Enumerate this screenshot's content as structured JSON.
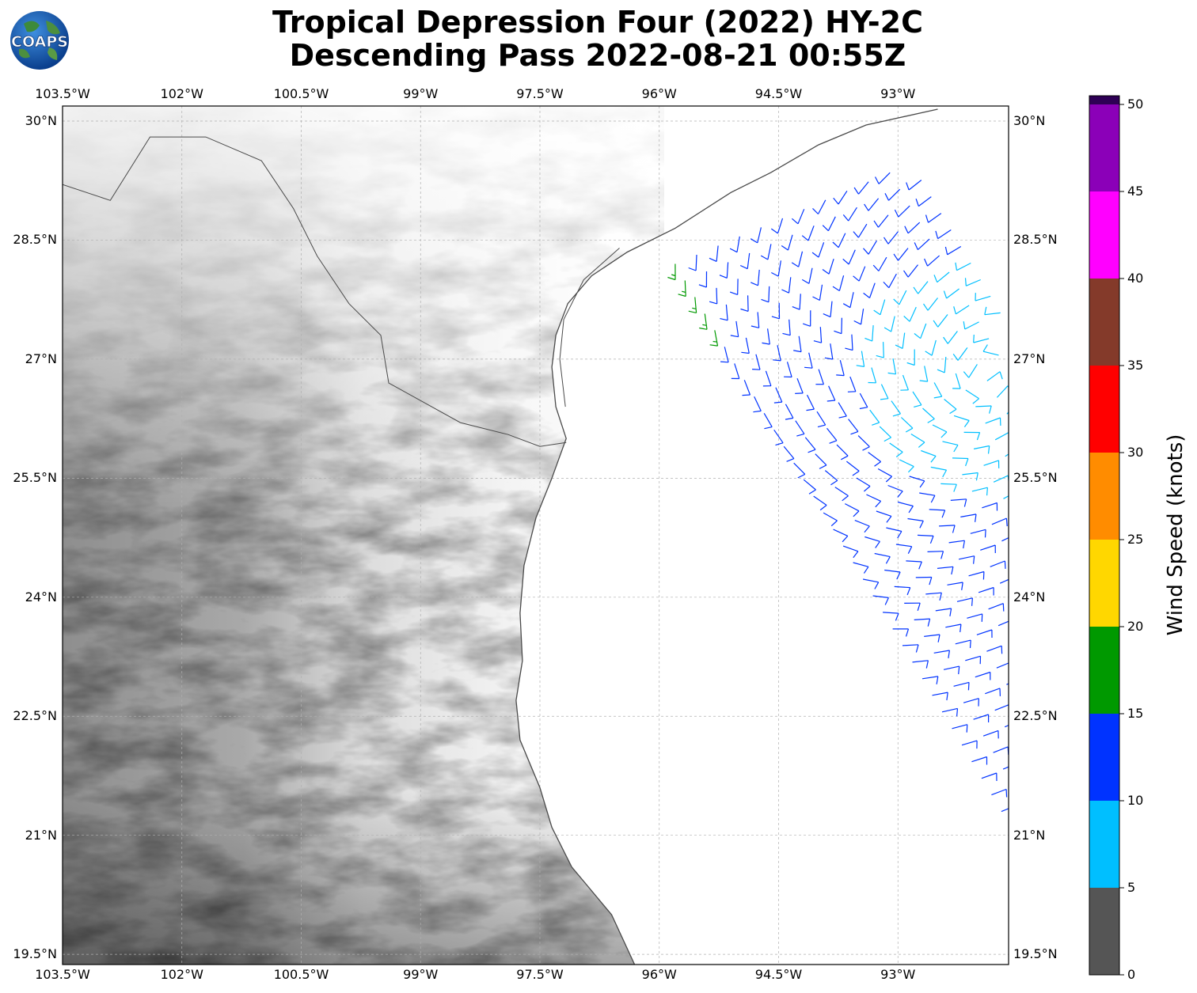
{
  "title": {
    "line1": "Tropical Depression Four (2022) HY-2C",
    "line2": "Descending Pass 2022-08-21 00:55Z"
  },
  "logo": {
    "text": "COAPS",
    "icon": "globe-logo-icon"
  },
  "axes": {
    "lon_ticks": [
      "103.5°W",
      "102°W",
      "100.5°W",
      "99°W",
      "97.5°W",
      "96°W",
      "94.5°W",
      "93°W"
    ],
    "lat_ticks": [
      "30°N",
      "28.5°N",
      "27°N",
      "25.5°N",
      "24°N",
      "22.5°N",
      "21°N",
      "19.5°N"
    ],
    "lon_range": [
      -103.5,
      -91.6
    ],
    "lat_range": [
      19.35,
      30.2
    ],
    "grid": true
  },
  "colorbar": {
    "label": "Wind Speed (knots)",
    "ticks": [
      "0",
      "5",
      "10",
      "15",
      "20",
      "25",
      "30",
      "35",
      "40",
      "45",
      "50"
    ],
    "colors": [
      "#555555",
      "#00bfff",
      "#0033ff",
      "#009900",
      "#ffd700",
      "#ff8c00",
      "#ff0000",
      "#843a2a",
      "#ff00ff",
      "#8b00b8",
      "#2e0055"
    ],
    "placement": "right"
  },
  "colors": {
    "coast": "#4a4a4a",
    "grid": "#b0b0b0",
    "land_dark": "#6a6a6a",
    "land_light": "#f4f4f4"
  },
  "chart_data": {
    "type": "scatter",
    "description_units": "wind barbs in lon/lat, speed in knots",
    "swath": {
      "corners": [
        [
          -95.8,
          28.2
        ],
        [
          -93.2,
          29.5
        ],
        [
          -91.6,
          29.0
        ],
        [
          -91.6,
          21.0
        ]
      ]
    },
    "circulation_center": [
      -91.9,
      26.8
    ],
    "speed_bins": {
      "outer": 12,
      "inner": 7,
      "northwest_edge": 16
    }
  }
}
